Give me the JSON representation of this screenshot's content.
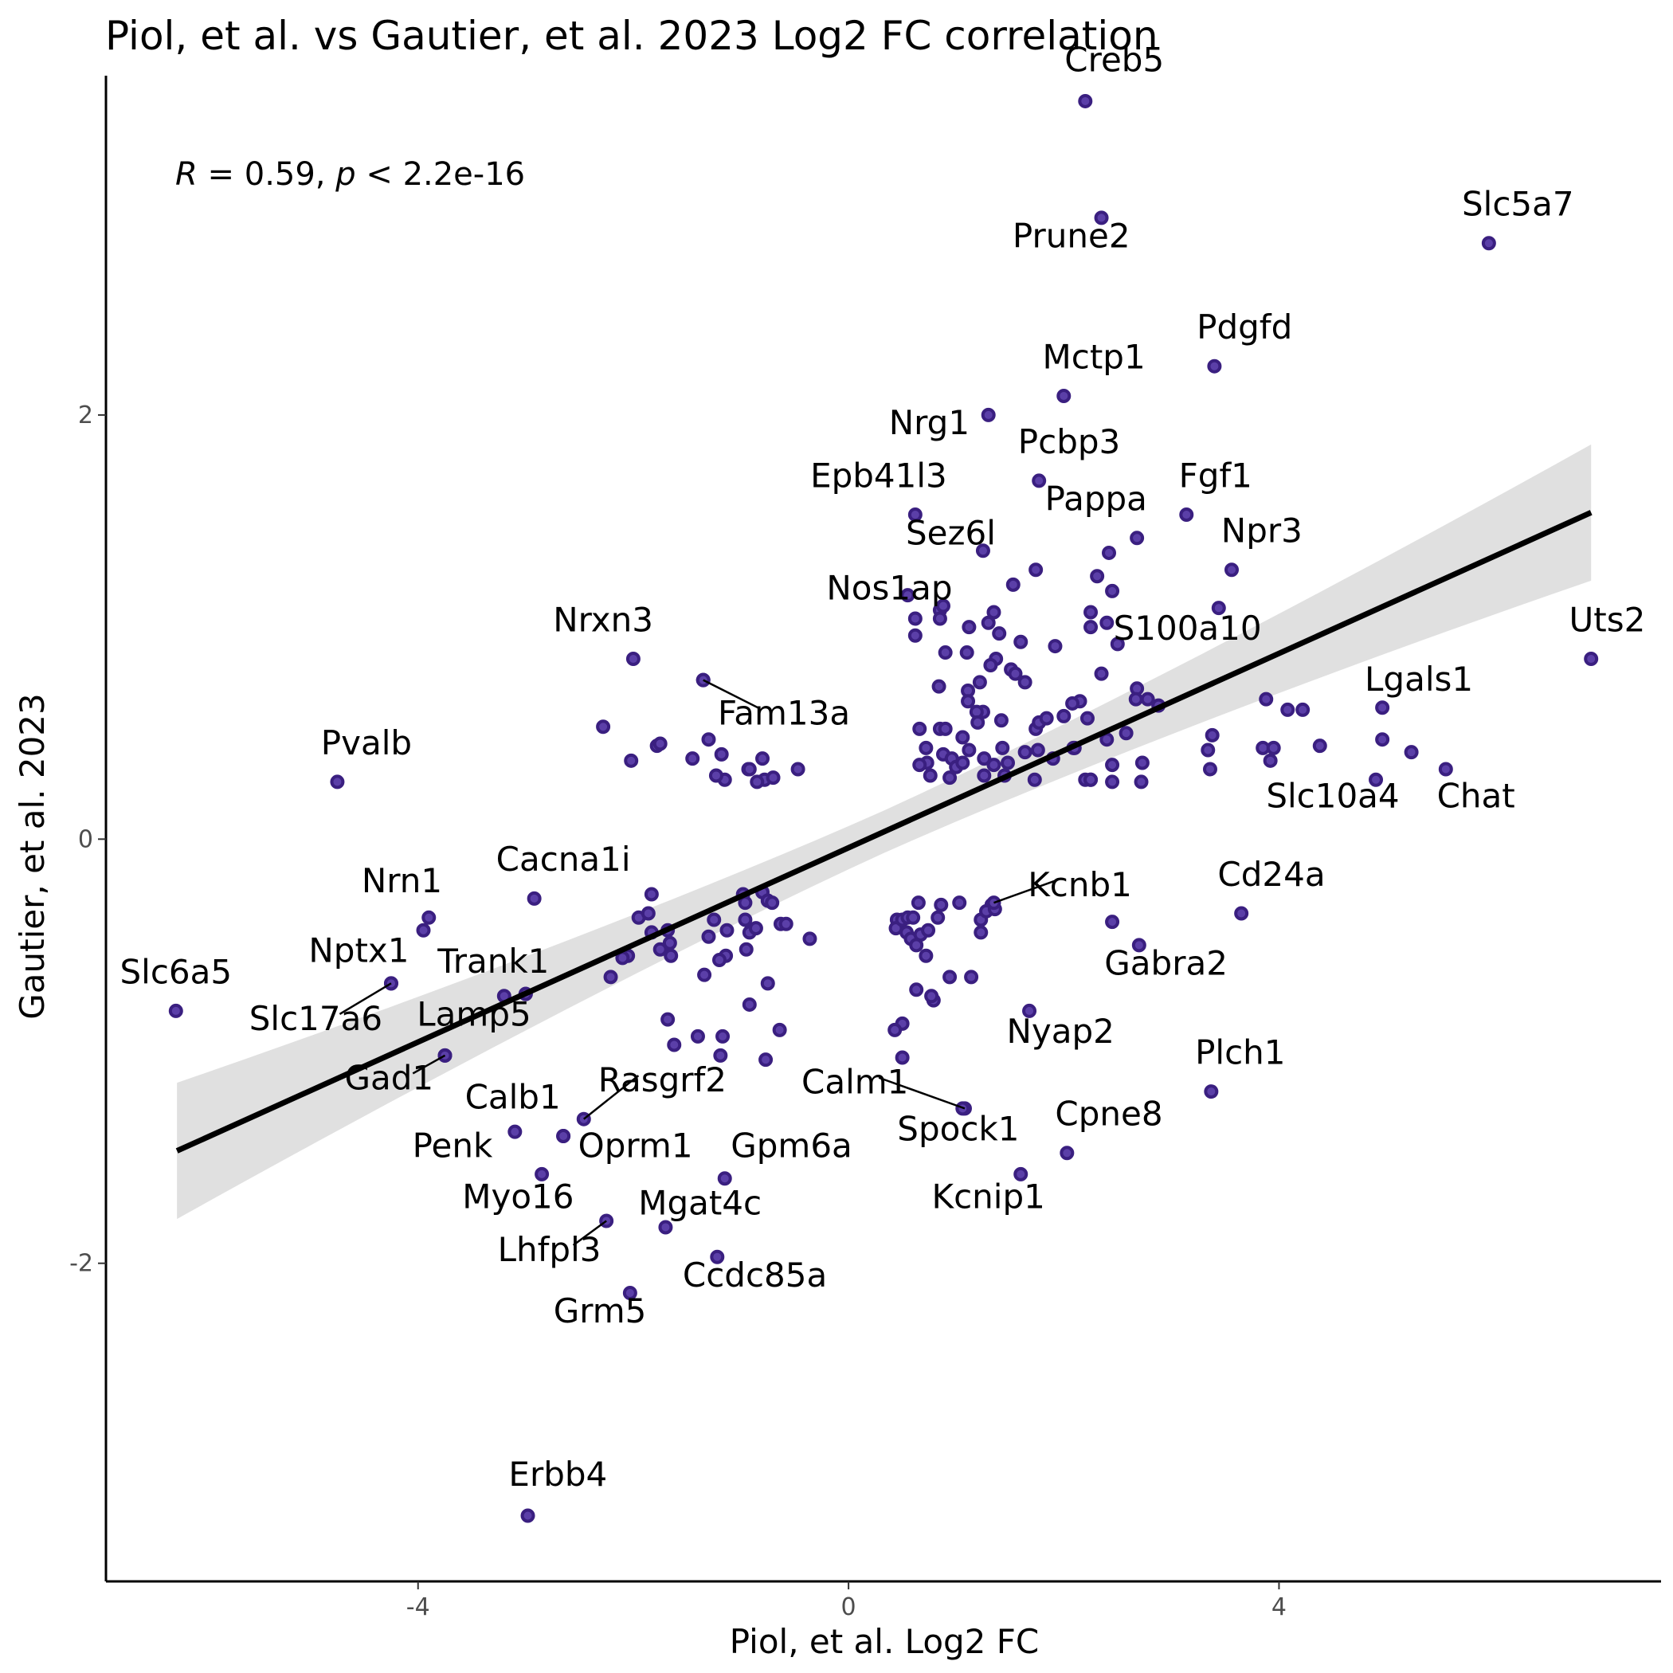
{
  "chart_data": {
    "type": "scatter",
    "title": "Piol, et al. vs Gautier, et al. 2023 Log2 FC correlation",
    "xlabel": "Piol, et al. Log2 FC",
    "ylabel": "Gautier, et al. 2023",
    "xlim": [
      -6.9,
      7.55
    ],
    "ylim": [
      -3.5,
      3.6
    ],
    "x_ticks": [
      -4,
      0,
      4
    ],
    "x_tick_labels": [
      "-4",
      "0",
      "4"
    ],
    "y_ticks": [
      -2,
      0,
      2
    ],
    "y_tick_labels": [
      "-2",
      "0",
      "2"
    ],
    "grid": false,
    "point_color": "#5b3fa8",
    "point_edge_color": "#3a1f80",
    "regression": {
      "x0": -6.24,
      "x1": 6.9,
      "y0": -1.47,
      "y1": 1.54,
      "line_color": "#000000",
      "ci_color": "#e0e0e0"
    },
    "annotation": {
      "R": "R",
      "eq1": " = 0.59, ",
      "p": "p",
      "eq2": " < 2.2e-16"
    },
    "labeled_points": [
      {
        "label": "Creb5",
        "x": 2.2,
        "y": 3.48,
        "lx": 2.47,
        "ly": 3.62,
        "fade": false
      },
      {
        "label": "Prune2",
        "x": 2.35,
        "y": 2.93,
        "lx": 2.07,
        "ly": 2.79,
        "fade": false
      },
      {
        "label": "Slc5a7",
        "x": 5.95,
        "y": 2.81,
        "lx": 6.22,
        "ly": 2.94,
        "fade": false
      },
      {
        "label": "Pdgfd",
        "x": 3.4,
        "y": 2.23,
        "lx": 3.68,
        "ly": 2.36,
        "fade": false
      },
      {
        "label": "Mctp1",
        "x": 2.0,
        "y": 2.09,
        "lx": 2.28,
        "ly": 2.22,
        "fade": false
      },
      {
        "label": "Nrg1",
        "x": 1.3,
        "y": 2.0,
        "lx": 0.75,
        "ly": 1.91,
        "fade": false
      },
      {
        "label": "Pcbp3",
        "x": 1.77,
        "y": 1.69,
        "lx": 2.05,
        "ly": 1.82,
        "fade": false
      },
      {
        "label": "Epb41l3",
        "x": 0.62,
        "y": 1.53,
        "lx": 0.28,
        "ly": 1.66,
        "fade": false
      },
      {
        "label": "Fgf1",
        "x": 3.14,
        "y": 1.53,
        "lx": 3.41,
        "ly": 1.66,
        "fade": false
      },
      {
        "label": "Pappa",
        "x": 2.68,
        "y": 1.42,
        "lx": 2.3,
        "ly": 1.55,
        "fade": false
      },
      {
        "label": "Npr3",
        "x": 3.56,
        "y": 1.27,
        "lx": 3.84,
        "ly": 1.4,
        "fade": false
      },
      {
        "label": "Sez6l",
        "x": 1.25,
        "y": 1.36,
        "lx": 0.95,
        "ly": 1.39,
        "fade": false
      },
      {
        "label": "Nos1ap",
        "x": 0.55,
        "y": 1.15,
        "lx": 0.38,
        "ly": 1.13,
        "fade": false
      },
      {
        "label": "S100a10",
        "x": 2.25,
        "y": 1.0,
        "lx": 3.15,
        "ly": 0.94,
        "fade": false
      },
      {
        "label": "Uts2",
        "x": 6.9,
        "y": 0.85,
        "lx": 7.05,
        "ly": 0.98,
        "fade": false
      },
      {
        "label": "Nrxn3",
        "x": -2.0,
        "y": 0.85,
        "lx": -2.28,
        "ly": 0.98,
        "fade": false
      },
      {
        "label": "Lgals1",
        "x": 4.96,
        "y": 0.62,
        "lx": 5.3,
        "ly": 0.7,
        "fade": false
      },
      {
        "label": "Fam13a",
        "x": -1.35,
        "y": 0.75,
        "lx": -0.6,
        "ly": 0.54,
        "fade": false
      },
      {
        "label": "Pvalb",
        "x": -4.75,
        "y": 0.27,
        "lx": -4.48,
        "ly": 0.4,
        "fade": false
      },
      {
        "label": "Slc10a4",
        "x": 4.9,
        "y": 0.28,
        "lx": 4.5,
        "ly": 0.15,
        "fade": false
      },
      {
        "label": "Chat",
        "x": 5.55,
        "y": 0.33,
        "lx": 5.83,
        "ly": 0.15,
        "fade": false
      },
      {
        "label": "Cacna1i",
        "x": -2.92,
        "y": -0.28,
        "lx": -2.65,
        "ly": -0.15,
        "fade": false
      },
      {
        "label": "Nrn1",
        "x": -3.9,
        "y": -0.37,
        "lx": -4.15,
        "ly": -0.25,
        "fade": false
      },
      {
        "label": "Kcnb1",
        "x": 1.35,
        "y": -0.3,
        "lx": 2.15,
        "ly": -0.27,
        "fade": false
      },
      {
        "label": "Cd24a",
        "x": 3.65,
        "y": -0.35,
        "lx": 3.93,
        "ly": -0.22,
        "fade": false
      },
      {
        "label": "Nptx1",
        "x": -4.25,
        "y": -0.68,
        "lx": -4.55,
        "ly": -0.58,
        "fade": false
      },
      {
        "label": "Trank1",
        "x": -3.0,
        "y": -0.73,
        "lx": -3.3,
        "ly": -0.63,
        "fade": false
      },
      {
        "label": "Slc6a5",
        "x": -6.25,
        "y": -0.81,
        "lx": -6.25,
        "ly": -0.68,
        "fade": false
      },
      {
        "label": "Gabra2",
        "x": 2.7,
        "y": -0.5,
        "lx": 2.95,
        "ly": -0.64,
        "fade": false
      },
      {
        "label": "Slc17a6",
        "x": -4.25,
        "y": -0.68,
        "lx": -4.95,
        "ly": -0.9,
        "fade": false
      },
      {
        "label": "Lamp5",
        "x": -3.75,
        "y": -1.02,
        "lx": -3.48,
        "ly": -0.88,
        "fade": true
      },
      {
        "label": "Nyap2",
        "x": 1.68,
        "y": -0.81,
        "lx": 1.97,
        "ly": -0.96,
        "fade": false
      },
      {
        "label": "Plch1",
        "x": 3.37,
        "y": -1.19,
        "lx": 3.64,
        "ly": -1.06,
        "fade": false
      },
      {
        "label": "Gad1",
        "x": -3.75,
        "y": -1.02,
        "lx": -4.27,
        "ly": -1.18,
        "fade": true
      },
      {
        "label": "Rasgrf2",
        "x": -2.46,
        "y": -1.32,
        "lx": -1.73,
        "ly": -1.19,
        "fade": false
      },
      {
        "label": "Calm1",
        "x": 1.08,
        "y": -1.27,
        "lx": 0.06,
        "ly": -1.2,
        "fade": false
      },
      {
        "label": "Calb1",
        "x": -3.1,
        "y": -1.38,
        "lx": -3.12,
        "ly": -1.27,
        "fade": false
      },
      {
        "label": "Cpne8",
        "x": 2.03,
        "y": -1.48,
        "lx": 2.42,
        "ly": -1.35,
        "fade": false
      },
      {
        "label": "Spock1",
        "x": 1.06,
        "y": -1.27,
        "lx": 1.02,
        "ly": -1.42,
        "fade": false
      },
      {
        "label": "Penk",
        "x": -2.65,
        "y": -1.4,
        "lx": -3.68,
        "ly": -1.5,
        "fade": false
      },
      {
        "label": "Oprm1",
        "x": -2.65,
        "y": -1.4,
        "lx": -1.98,
        "ly": -1.5,
        "fade": false
      },
      {
        "label": "Gpm6a",
        "x": -1.15,
        "y": -1.6,
        "lx": -0.53,
        "ly": -1.5,
        "fade": false
      },
      {
        "label": "Myo16",
        "x": -2.85,
        "y": -1.58,
        "lx": -3.07,
        "ly": -1.74,
        "fade": false
      },
      {
        "label": "Mgat4c",
        "x": -1.7,
        "y": -1.83,
        "lx": -1.38,
        "ly": -1.77,
        "fade": false
      },
      {
        "label": "Kcnip1",
        "x": 1.6,
        "y": -1.58,
        "lx": 1.3,
        "ly": -1.74,
        "fade": false
      },
      {
        "label": "Lhfpl3",
        "x": -2.25,
        "y": -1.8,
        "lx": -2.78,
        "ly": -1.99,
        "fade": false
      },
      {
        "label": "Ccdc85a",
        "x": -1.22,
        "y": -1.97,
        "lx": -0.87,
        "ly": -2.11,
        "fade": false
      },
      {
        "label": "Grm5",
        "x": -2.03,
        "y": -2.14,
        "lx": -2.31,
        "ly": -2.28,
        "fade": false
      },
      {
        "label": "Erbb4",
        "x": -2.98,
        "y": -3.19,
        "lx": -2.7,
        "ly": -3.05,
        "fade": false
      }
    ],
    "points": [
      [
        -1.35,
        0.75
      ],
      [
        -2.28,
        0.53
      ],
      [
        -1.78,
        0.44
      ],
      [
        -1.75,
        0.45
      ],
      [
        -1.45,
        0.38
      ],
      [
        -2.02,
        0.37
      ],
      [
        -1.3,
        0.47
      ],
      [
        -1.18,
        0.4
      ],
      [
        -1.15,
        0.28
      ],
      [
        -1.23,
        0.3
      ],
      [
        -0.93,
        0.33
      ],
      [
        -0.8,
        0.38
      ],
      [
        -0.78,
        0.28
      ],
      [
        -0.7,
        0.29
      ],
      [
        -0.47,
        0.33
      ],
      [
        -0.85,
        0.27
      ],
      [
        -0.92,
        0.33
      ],
      [
        0.62,
        0.96
      ],
      [
        0.62,
        1.04
      ],
      [
        0.85,
        1.08
      ],
      [
        0.88,
        1.1
      ],
      [
        0.85,
        1.04
      ],
      [
        1.35,
        1.07
      ],
      [
        1.12,
        1.0
      ],
      [
        1.3,
        1.02
      ],
      [
        1.4,
        0.97
      ],
      [
        1.6,
        0.93
      ],
      [
        0.9,
        0.88
      ],
      [
        1.1,
        0.88
      ],
      [
        1.37,
        0.85
      ],
      [
        1.32,
        0.82
      ],
      [
        1.51,
        0.8
      ],
      [
        1.55,
        0.78
      ],
      [
        1.64,
        0.74
      ],
      [
        1.22,
        0.74
      ],
      [
        0.84,
        0.72
      ],
      [
        1.11,
        0.7
      ],
      [
        1.11,
        0.65
      ],
      [
        1.25,
        0.6
      ],
      [
        1.19,
        0.6
      ],
      [
        1.42,
        0.56
      ],
      [
        1.74,
        0.52
      ],
      [
        1.77,
        0.55
      ],
      [
        1.84,
        0.57
      ],
      [
        0.66,
        0.52
      ],
      [
        0.85,
        0.52
      ],
      [
        0.9,
        0.52
      ],
      [
        1.2,
        0.55
      ],
      [
        1.06,
        0.48
      ],
      [
        1.43,
        0.43
      ],
      [
        0.72,
        0.43
      ],
      [
        0.88,
        0.4
      ],
      [
        0.96,
        0.38
      ],
      [
        1.0,
        0.34
      ],
      [
        1.06,
        0.36
      ],
      [
        1.12,
        0.42
      ],
      [
        1.26,
        0.38
      ],
      [
        1.35,
        0.35
      ],
      [
        0.73,
        0.36
      ],
      [
        0.66,
        0.35
      ],
      [
        0.76,
        0.3
      ],
      [
        0.94,
        0.29
      ],
      [
        1.26,
        0.3
      ],
      [
        1.45,
        0.3
      ],
      [
        1.48,
        0.36
      ],
      [
        1.64,
        0.41
      ],
      [
        1.76,
        0.42
      ],
      [
        1.9,
        0.38
      ],
      [
        2.09,
        0.43
      ],
      [
        2.1,
        0.43
      ],
      [
        2.22,
        0.57
      ],
      [
        2.4,
        0.47
      ],
      [
        2.2,
        0.28
      ],
      [
        2.25,
        0.28
      ],
      [
        2.45,
        0.35
      ],
      [
        2.68,
        0.71
      ],
      [
        2.78,
        0.66
      ],
      [
        2.88,
        0.63
      ],
      [
        2.67,
        0.66
      ],
      [
        2.58,
        0.5
      ],
      [
        2.4,
        1.02
      ],
      [
        2.5,
        0.92
      ],
      [
        2.35,
        0.78
      ],
      [
        2.15,
        0.65
      ],
      [
        2.08,
        0.64
      ],
      [
        2.0,
        0.58
      ],
      [
        1.74,
        1.27
      ],
      [
        1.53,
        1.2
      ],
      [
        2.31,
        1.24
      ],
      [
        2.45,
        1.17
      ],
      [
        2.42,
        1.35
      ],
      [
        1.92,
        0.91
      ],
      [
        2.25,
        1.07
      ],
      [
        2.25,
        0.28
      ],
      [
        2.45,
        0.27
      ],
      [
        1.73,
        0.28
      ],
      [
        2.72,
        0.27
      ],
      [
        2.73,
        0.36
      ],
      [
        3.36,
        0.33
      ],
      [
        3.34,
        0.42
      ],
      [
        3.38,
        0.49
      ],
      [
        3.44,
        1.09
      ],
      [
        3.85,
        0.43
      ],
      [
        3.92,
        0.37
      ],
      [
        3.95,
        0.43
      ],
      [
        3.88,
        0.66
      ],
      [
        4.08,
        0.61
      ],
      [
        4.22,
        0.61
      ],
      [
        4.38,
        0.44
      ],
      [
        4.96,
        0.47
      ],
      [
        5.23,
        0.41
      ],
      [
        -1.83,
        -0.26
      ],
      [
        -1.95,
        -0.37
      ],
      [
        -1.86,
        -0.35
      ],
      [
        -1.83,
        -0.44
      ],
      [
        -1.68,
        -0.43
      ],
      [
        -1.66,
        -0.49
      ],
      [
        -1.75,
        -0.52
      ],
      [
        -1.65,
        -0.55
      ],
      [
        -2.05,
        -0.55
      ],
      [
        -2.1,
        -0.56
      ],
      [
        -2.21,
        -0.65
      ],
      [
        -1.34,
        -0.64
      ],
      [
        -1.3,
        -0.46
      ],
      [
        -1.25,
        -0.38
      ],
      [
        -1.13,
        -0.43
      ],
      [
        -1.14,
        -0.55
      ],
      [
        -0.98,
        -0.26
      ],
      [
        -0.96,
        -0.3
      ],
      [
        -0.8,
        -0.25
      ],
      [
        -0.75,
        -0.29
      ],
      [
        -0.71,
        -0.3
      ],
      [
        -0.92,
        -0.44
      ],
      [
        -0.96,
        -0.38
      ],
      [
        -0.86,
        -0.42
      ],
      [
        -0.63,
        -0.4
      ],
      [
        -0.58,
        -0.4
      ],
      [
        -0.36,
        -0.47
      ],
      [
        -0.95,
        -0.52
      ],
      [
        -1.2,
        -0.57
      ],
      [
        -0.75,
        -0.68
      ],
      [
        -0.92,
        -0.78
      ],
      [
        -0.64,
        -0.9
      ],
      [
        -0.77,
        -1.04
      ],
      [
        -1.68,
        -0.85
      ],
      [
        -1.62,
        -0.97
      ],
      [
        -1.4,
        -0.93
      ],
      [
        -1.17,
        -0.93
      ],
      [
        -1.19,
        -1.02
      ],
      [
        -3.0,
        -0.73
      ],
      [
        -3.2,
        -0.74
      ],
      [
        -3.95,
        -0.43
      ],
      [
        0.45,
        -0.38
      ],
      [
        0.44,
        -0.42
      ],
      [
        0.5,
        -0.38
      ],
      [
        0.55,
        -0.37
      ],
      [
        0.6,
        -0.37
      ],
      [
        0.65,
        -0.3
      ],
      [
        0.54,
        -0.44
      ],
      [
        0.58,
        -0.47
      ],
      [
        0.67,
        -0.45
      ],
      [
        0.74,
        -0.43
      ],
      [
        0.63,
        -0.5
      ],
      [
        0.72,
        -0.55
      ],
      [
        0.83,
        -0.37
      ],
      [
        0.86,
        -0.31
      ],
      [
        1.03,
        -0.3
      ],
      [
        1.23,
        -0.38
      ],
      [
        1.23,
        -0.44
      ],
      [
        1.33,
        -0.31
      ],
      [
        1.28,
        -0.34
      ],
      [
        1.36,
        -0.33
      ],
      [
        0.94,
        -0.65
      ],
      [
        1.14,
        -0.65
      ],
      [
        0.63,
        -0.71
      ],
      [
        0.79,
        -0.76
      ],
      [
        0.77,
        -0.74
      ],
      [
        0.5,
        -0.87
      ],
      [
        0.43,
        -0.9
      ],
      [
        0.5,
        -1.03
      ],
      [
        2.45,
        -0.39
      ]
    ]
  }
}
